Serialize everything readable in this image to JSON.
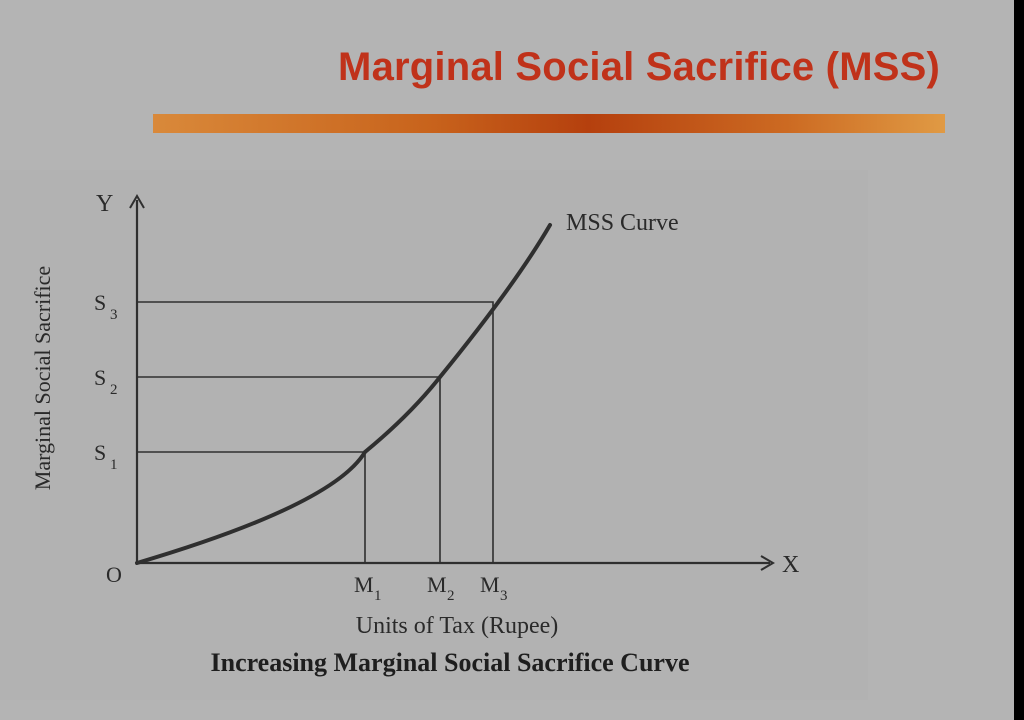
{
  "slide": {
    "title": "Marginal Social Sacrifice (MSS)"
  },
  "diagram": {
    "y_axis_letter": "Y",
    "x_axis_letter": "X",
    "origin_label": "O",
    "y_axis_title": "Marginal Social Sacrifice",
    "x_axis_title": "Units of Tax (Rupee)",
    "curve_label": "MSS Curve",
    "caption": "Increasing Marginal Social Sacrifice Curve",
    "y_ticks": [
      {
        "base": "S",
        "sub": "1"
      },
      {
        "base": "S",
        "sub": "2"
      },
      {
        "base": "S",
        "sub": "3"
      }
    ],
    "x_ticks": [
      {
        "base": "M",
        "sub": "1"
      },
      {
        "base": "M",
        "sub": "2"
      },
      {
        "base": "M",
        "sub": "3"
      }
    ],
    "line_color": "#2f2f2f"
  }
}
